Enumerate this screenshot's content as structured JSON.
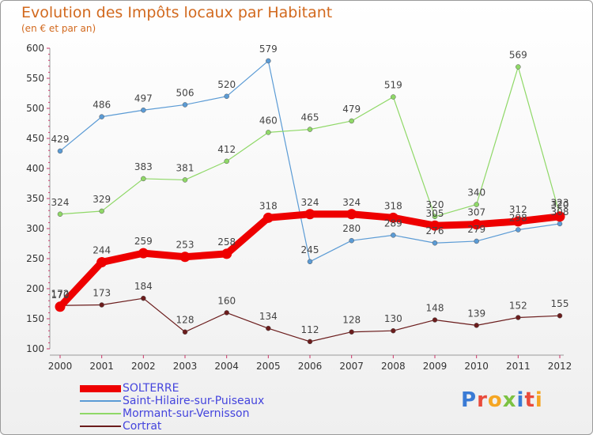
{
  "title": "Evolution des Impôts locaux par Habitant",
  "subtitle": "(en € et par an)",
  "logo": {
    "text": "Proxiti",
    "colors": [
      "#3a7bd5",
      "#e94b3c",
      "#f5a623",
      "#7cc242",
      "#3a7bd5",
      "#e94b3c",
      "#f5a623"
    ]
  },
  "chart_data": {
    "type": "line",
    "x": [
      "2000",
      "2001",
      "2002",
      "2003",
      "2004",
      "2005",
      "2006",
      "2007",
      "2008",
      "2009",
      "2010",
      "2011",
      "2012"
    ],
    "ylim": [
      100,
      600
    ],
    "yticks": [
      "100",
      "150",
      "200",
      "250",
      "300",
      "350",
      "400",
      "450",
      "500",
      "550",
      "600"
    ],
    "grid": false,
    "legend_position": "bottom-left",
    "series": [
      {
        "name": "SOLTERRE",
        "color": "#ee0000",
        "emphasis": true,
        "values": [
          170,
          244,
          259,
          253,
          258,
          318,
          324,
          324,
          318,
          305,
          307,
          312,
          320
        ],
        "labels": [
          "170",
          "244",
          "259",
          "253",
          "258",
          "318",
          "324",
          "324",
          "318",
          "305",
          "307",
          "312",
          "320"
        ]
      },
      {
        "name": "Saint-Hilaire-sur-Puiseaux",
        "color": "#5b9bd5",
        "values": [
          429,
          486,
          497,
          506,
          520,
          579,
          245,
          280,
          289,
          276,
          279,
          298,
          308
        ],
        "labels": [
          "429",
          "486",
          "497",
          "506",
          "520",
          "579",
          "245",
          "280",
          "289",
          "276",
          "279",
          "298",
          "308"
        ]
      },
      {
        "name": "Mormant-sur-Vernisson",
        "color": "#8fd867",
        "values": [
          324,
          329,
          383,
          381,
          412,
          460,
          465,
          479,
          519,
          320,
          340,
          569,
          323
        ],
        "labels": [
          "324",
          "329",
          "383",
          "381",
          "412",
          "460",
          "465",
          "479",
          "519",
          "320",
          "340",
          "569",
          "323"
        ]
      },
      {
        "name": "Cortrat",
        "color": "#6b1c1c",
        "values": [
          172,
          173,
          184,
          128,
          160,
          134,
          112,
          128,
          130,
          148,
          139,
          152,
          155
        ],
        "labels": [
          "172",
          "173",
          "184",
          "128",
          "160",
          "134",
          "112",
          "128",
          "130",
          "148",
          "139",
          "152",
          "155"
        ]
      }
    ]
  }
}
